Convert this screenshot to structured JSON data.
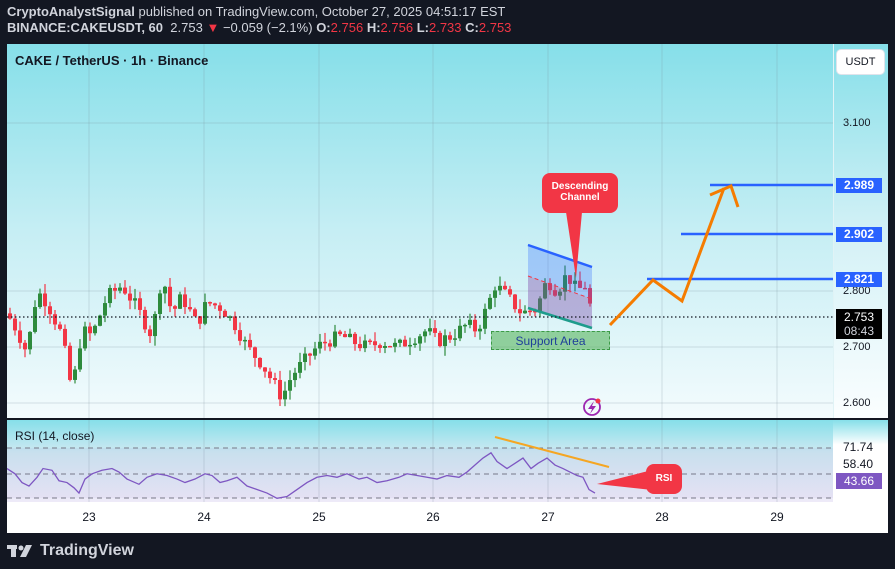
{
  "header": {
    "author": "CryptoAnalystSignal",
    "published_text": "published on TradingView.com, October 27, 2025 04:51:17 EST",
    "symbol": "BINANCE:CAKEUSDT, 60",
    "last": "2.753",
    "change_arrow": "▼",
    "change": "−0.059 (−2.1%)",
    "o_label": "O:",
    "open": "2.756",
    "h_label": "H:",
    "high": "2.756",
    "l_label": "L:",
    "low": "2.733",
    "c_label": "C:",
    "close": "2.753"
  },
  "chart": {
    "title": "CAKE / TetherUS · 1h · Binance",
    "currency_button": "USDT",
    "current_price": "2.753",
    "countdown": "08:43",
    "price_ticks": [
      "3.100",
      "2.800",
      "2.700",
      "2.600"
    ],
    "targets": [
      "2.989",
      "2.902",
      "2.821"
    ],
    "annotations": {
      "descending_channel": "Descending Channel",
      "support_area": "Support Area",
      "rsi_callout": "RSI"
    },
    "colors": {
      "up": "#2e8b3d",
      "down": "#f23645",
      "target_line": "#2962ff",
      "projection": "#f57c00",
      "rsi_line": "#7e57c2"
    }
  },
  "rsi": {
    "title": "RSI (14, close)",
    "ticks": [
      "71.74",
      "58.40"
    ],
    "current": "43.66"
  },
  "x_axis": [
    "23",
    "24",
    "25",
    "26",
    "27",
    "28",
    "29"
  ],
  "brand": "TradingView",
  "chart_data": {
    "type": "candlestick",
    "title": "CAKE / TetherUS · 1h · Binance",
    "xlabel": "",
    "ylabel": "USDT",
    "x_ticks": [
      "23",
      "24",
      "25",
      "26",
      "27",
      "28",
      "29"
    ],
    "y_ticks": [
      2.6,
      2.7,
      2.8,
      3.1
    ],
    "ylim": [
      2.58,
      3.22
    ],
    "last_price": 2.753,
    "ohlc_summary": {
      "open": 2.756,
      "high": 2.756,
      "low": 2.733,
      "close": 2.753,
      "change": -0.059,
      "change_pct": -2.1
    },
    "price_path_approx": [
      {
        "x": "22.6",
        "close": 2.76
      },
      {
        "x": "22.9",
        "close": 2.68
      },
      {
        "x": "23.1",
        "close": 2.8
      },
      {
        "x": "23.4",
        "close": 2.72
      },
      {
        "x": "23.7",
        "close": 2.8
      },
      {
        "x": "24.0",
        "close": 2.76
      },
      {
        "x": "24.3",
        "close": 2.77
      },
      {
        "x": "24.6",
        "close": 2.65
      },
      {
        "x": "24.75",
        "close": 2.6
      },
      {
        "x": "25.0",
        "close": 2.67
      },
      {
        "x": "25.3",
        "close": 2.71
      },
      {
        "x": "25.6",
        "close": 2.68
      },
      {
        "x": "25.9",
        "close": 2.71
      },
      {
        "x": "26.3",
        "close": 2.7
      },
      {
        "x": "26.6",
        "close": 2.81
      },
      {
        "x": "26.9",
        "close": 2.79
      },
      {
        "x": "27.2",
        "close": 2.82
      },
      {
        "x": "27.4",
        "close": 2.753
      }
    ],
    "target_levels": [
      2.989,
      2.902,
      2.821
    ],
    "support_zone": [
      2.7,
      2.73
    ],
    "rsi": {
      "name": "RSI (14, close)",
      "levels": [
        71.74,
        58.4
      ],
      "current": 43.66,
      "upper_band": 70,
      "lower_band": 30
    }
  }
}
